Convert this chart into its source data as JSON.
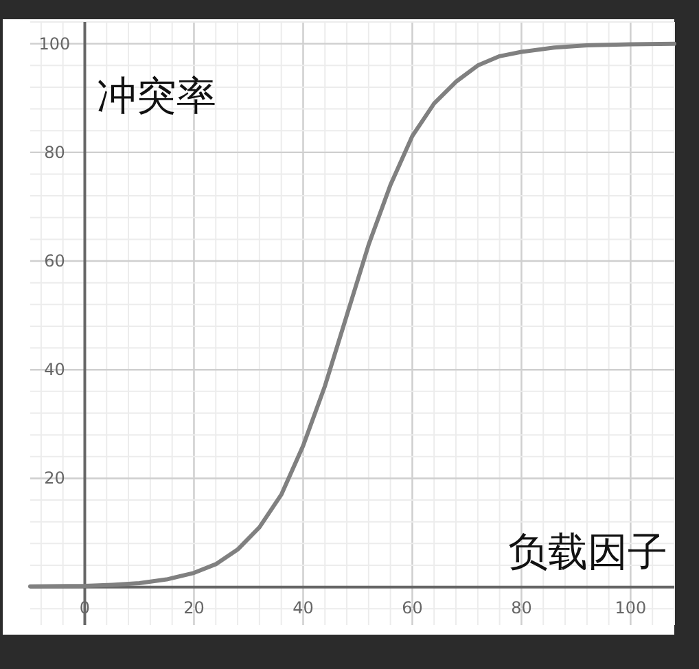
{
  "chart_data": {
    "type": "line",
    "xlabel": "负载因子",
    "ylabel": "冲突率",
    "x": [
      -10,
      0,
      5,
      10,
      15,
      20,
      24,
      28,
      32,
      36,
      40,
      44,
      48,
      52,
      56,
      60,
      64,
      68,
      72,
      76,
      80,
      86,
      92,
      100,
      108
    ],
    "series": [
      {
        "color": "#808080",
        "values": [
          0.1,
          0.2,
          0.4,
          0.7,
          1.4,
          2.6,
          4.2,
          6.9,
          11,
          17,
          26,
          37,
          50,
          63,
          74,
          83,
          89,
          93,
          96,
          97.7,
          98.5,
          99.3,
          99.7,
          99.9,
          100
        ]
      }
    ],
    "xlim": [
      -10,
      108
    ],
    "ylim": [
      -7,
      104
    ],
    "xticks": [
      0,
      20,
      40,
      60,
      80,
      100
    ],
    "yticks": [
      20,
      40,
      60,
      80,
      100
    ],
    "grid": true
  }
}
